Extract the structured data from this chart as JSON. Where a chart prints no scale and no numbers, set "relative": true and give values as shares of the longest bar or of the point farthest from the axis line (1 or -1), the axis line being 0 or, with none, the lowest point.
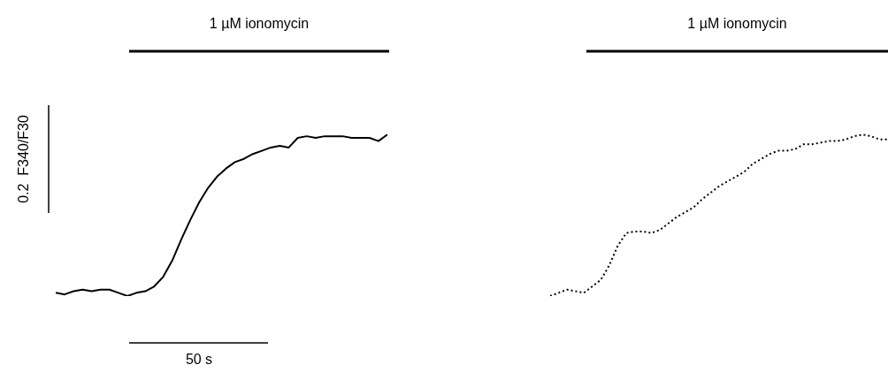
{
  "chart_data": [
    {
      "type": "line",
      "relative": true,
      "line_style": "solid",
      "annotations": [
        "1 µM ionomycin",
        "0.2  F340/F30",
        "50 s"
      ],
      "categories": [
        null,
        null,
        null,
        null,
        null,
        null,
        null,
        null,
        null,
        null,
        null,
        null,
        null,
        null,
        null,
        null,
        null,
        null,
        null,
        null,
        null,
        null,
        null,
        null,
        null,
        null,
        null,
        null,
        null,
        null,
        null,
        null,
        null,
        null,
        null,
        null,
        null,
        null
      ],
      "series": [
        {
          "color": "#000000",
          "values": [
            0.02,
            0.01,
            0.03,
            0.04,
            0.03,
            0.04,
            0.04,
            0.02,
            0.0,
            0.02,
            0.03,
            0.06,
            0.12,
            0.22,
            0.35,
            0.47,
            0.58,
            0.67,
            0.74,
            0.79,
            0.83,
            0.85,
            0.88,
            0.9,
            0.92,
            0.93,
            0.92,
            0.98,
            0.99,
            0.98,
            0.99,
            0.99,
            0.99,
            0.98,
            0.98,
            0.98,
            0.96,
            1.0
          ]
        }
      ]
    },
    {
      "type": "line",
      "relative": true,
      "line_style": "dotted",
      "annotations": [
        "1 µM ionomycin"
      ],
      "categories": [
        null,
        null,
        null,
        null,
        null,
        null,
        null,
        null,
        null,
        null,
        null,
        null,
        null,
        null,
        null,
        null,
        null,
        null,
        null,
        null,
        null,
        null,
        null,
        null,
        null,
        null,
        null,
        null,
        null,
        null,
        null,
        null,
        null,
        null,
        null,
        null,
        null,
        null,
        null,
        null,
        null
      ],
      "series": [
        {
          "color": "#000000",
          "values": [
            0.0,
            0.02,
            0.04,
            0.03,
            0.02,
            0.06,
            0.1,
            0.19,
            0.31,
            0.39,
            0.4,
            0.4,
            0.39,
            0.41,
            0.45,
            0.49,
            0.52,
            0.55,
            0.6,
            0.64,
            0.68,
            0.71,
            0.74,
            0.77,
            0.82,
            0.85,
            0.88,
            0.9,
            0.9,
            0.91,
            0.94,
            0.94,
            0.95,
            0.96,
            0.96,
            0.97,
            0.99,
            1.0,
            0.99,
            0.97,
            0.97
          ]
        }
      ]
    }
  ]
}
